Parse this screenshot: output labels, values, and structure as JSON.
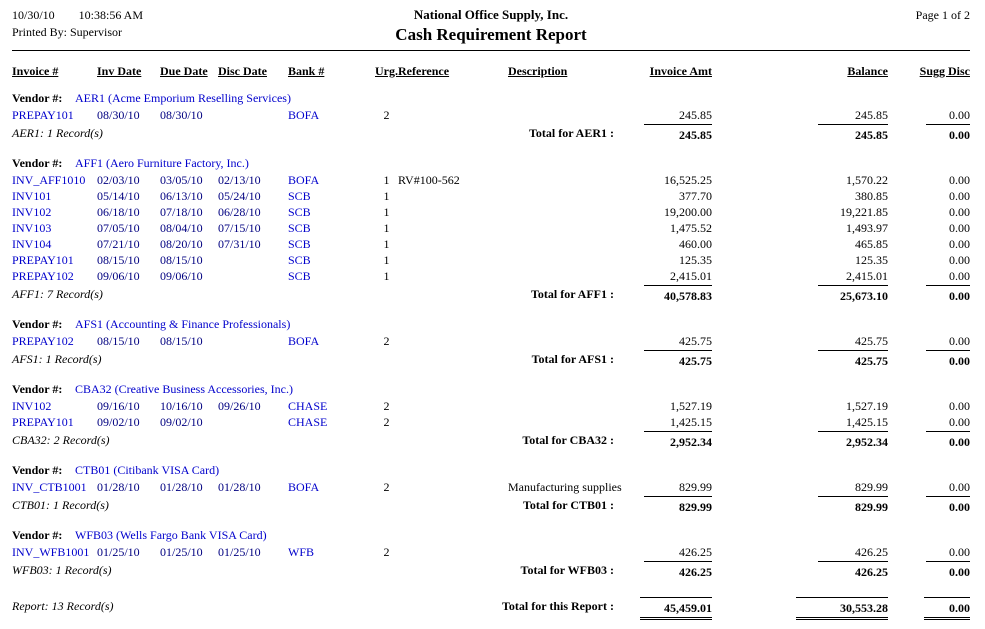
{
  "header": {
    "date": "10/30/10",
    "time": "10:38:56 AM",
    "printed_by": "Printed By: Supervisor",
    "company": "National Office Supply, Inc.",
    "title": "Cash Requirement Report",
    "page": "Page 1 of 2"
  },
  "columns": [
    "Invoice #",
    "Inv Date",
    "Due Date",
    "Disc Date",
    "Bank #",
    "Urg.",
    "Reference",
    "Description",
    "Invoice Amt",
    "Balance",
    "Sugg Disc"
  ],
  "vendor_label": "Vendor #:",
  "groups": [
    {
      "vendor": "AER1 (Acme Emporium Reselling Services)",
      "rows": [
        {
          "invoice": "PREPAY101",
          "inv_date": "08/30/10",
          "due_date": "08/30/10",
          "disc_date": "",
          "bank": "BOFA",
          "urg": "2",
          "reference": "",
          "description": "",
          "invoice_amt": "245.85",
          "balance": "245.85",
          "sugg_disc": "0.00"
        }
      ],
      "record_count": "AER1: 1 Record(s)",
      "total_label": "Total for AER1 :",
      "total_invoice_amt": "245.85",
      "total_balance": "245.85",
      "total_sugg_disc": "0.00"
    },
    {
      "vendor": "AFF1 (Aero Furniture Factory, Inc.)",
      "rows": [
        {
          "invoice": "INV_AFF1010",
          "inv_date": "02/03/10",
          "due_date": "03/05/10",
          "disc_date": "02/13/10",
          "bank": "BOFA",
          "urg": "1",
          "reference": "RV#100-562",
          "description": "",
          "invoice_amt": "16,525.25",
          "balance": "1,570.22",
          "sugg_disc": "0.00"
        },
        {
          "invoice": "INV101",
          "inv_date": "05/14/10",
          "due_date": "06/13/10",
          "disc_date": "05/24/10",
          "bank": "SCB",
          "urg": "1",
          "reference": "",
          "description": "",
          "invoice_amt": "377.70",
          "balance": "380.85",
          "sugg_disc": "0.00"
        },
        {
          "invoice": "INV102",
          "inv_date": "06/18/10",
          "due_date": "07/18/10",
          "disc_date": "06/28/10",
          "bank": "SCB",
          "urg": "1",
          "reference": "",
          "description": "",
          "invoice_amt": "19,200.00",
          "balance": "19,221.85",
          "sugg_disc": "0.00"
        },
        {
          "invoice": "INV103",
          "inv_date": "07/05/10",
          "due_date": "08/04/10",
          "disc_date": "07/15/10",
          "bank": "SCB",
          "urg": "1",
          "reference": "",
          "description": "",
          "invoice_amt": "1,475.52",
          "balance": "1,493.97",
          "sugg_disc": "0.00"
        },
        {
          "invoice": "INV104",
          "inv_date": "07/21/10",
          "due_date": "08/20/10",
          "disc_date": "07/31/10",
          "bank": "SCB",
          "urg": "1",
          "reference": "",
          "description": "",
          "invoice_amt": "460.00",
          "balance": "465.85",
          "sugg_disc": "0.00"
        },
        {
          "invoice": "PREPAY101",
          "inv_date": "08/15/10",
          "due_date": "08/15/10",
          "disc_date": "",
          "bank": "SCB",
          "urg": "1",
          "reference": "",
          "description": "",
          "invoice_amt": "125.35",
          "balance": "125.35",
          "sugg_disc": "0.00"
        },
        {
          "invoice": "PREPAY102",
          "inv_date": "09/06/10",
          "due_date": "09/06/10",
          "disc_date": "",
          "bank": "SCB",
          "urg": "1",
          "reference": "",
          "description": "",
          "invoice_amt": "2,415.01",
          "balance": "2,415.01",
          "sugg_disc": "0.00"
        }
      ],
      "record_count": "AFF1: 7 Record(s)",
      "total_label": "Total for AFF1 :",
      "total_invoice_amt": "40,578.83",
      "total_balance": "25,673.10",
      "total_sugg_disc": "0.00"
    },
    {
      "vendor": "AFS1 (Accounting & Finance Professionals)",
      "rows": [
        {
          "invoice": "PREPAY102",
          "inv_date": "08/15/10",
          "due_date": "08/15/10",
          "disc_date": "",
          "bank": "BOFA",
          "urg": "2",
          "reference": "",
          "description": "",
          "invoice_amt": "425.75",
          "balance": "425.75",
          "sugg_disc": "0.00"
        }
      ],
      "record_count": "AFS1: 1 Record(s)",
      "total_label": "Total for AFS1 :",
      "total_invoice_amt": "425.75",
      "total_balance": "425.75",
      "total_sugg_disc": "0.00"
    },
    {
      "vendor": "CBA32 (Creative Business Accessories, Inc.)",
      "rows": [
        {
          "invoice": "INV102",
          "inv_date": "09/16/10",
          "due_date": "10/16/10",
          "disc_date": "09/26/10",
          "bank": "CHASE",
          "urg": "2",
          "reference": "",
          "description": "",
          "invoice_amt": "1,527.19",
          "balance": "1,527.19",
          "sugg_disc": "0.00"
        },
        {
          "invoice": "PREPAY101",
          "inv_date": "09/02/10",
          "due_date": "09/02/10",
          "disc_date": "",
          "bank": "CHASE",
          "urg": "2",
          "reference": "",
          "description": "",
          "invoice_amt": "1,425.15",
          "balance": "1,425.15",
          "sugg_disc": "0.00"
        }
      ],
      "record_count": "CBA32: 2 Record(s)",
      "total_label": "Total for CBA32 :",
      "total_invoice_amt": "2,952.34",
      "total_balance": "2,952.34",
      "total_sugg_disc": "0.00"
    },
    {
      "vendor": "CTB01 (Citibank VISA Card)",
      "rows": [
        {
          "invoice": "INV_CTB1001",
          "inv_date": "01/28/10",
          "due_date": "01/28/10",
          "disc_date": "01/28/10",
          "bank": "BOFA",
          "urg": "2",
          "reference": "",
          "description": "Manufacturing supplies",
          "invoice_amt": "829.99",
          "balance": "829.99",
          "sugg_disc": "0.00"
        }
      ],
      "record_count": "CTB01: 1 Record(s)",
      "total_label": "Total for CTB01 :",
      "total_invoice_amt": "829.99",
      "total_balance": "829.99",
      "total_sugg_disc": "0.00"
    },
    {
      "vendor": "WFB03 (Wells Fargo Bank VISA Card)",
      "rows": [
        {
          "invoice": "INV_WFB1001",
          "inv_date": "01/25/10",
          "due_date": "01/25/10",
          "disc_date": "01/25/10",
          "bank": "WFB",
          "urg": "2",
          "reference": "",
          "description": "",
          "invoice_amt": "426.25",
          "balance": "426.25",
          "sugg_disc": "0.00"
        }
      ],
      "record_count": "WFB03: 1 Record(s)",
      "total_label": "Total for WFB03 :",
      "total_invoice_amt": "426.25",
      "total_balance": "426.25",
      "total_sugg_disc": "0.00"
    }
  ],
  "report_total": {
    "record_count": "Report: 13 Record(s)",
    "label": "Total for this Report :",
    "invoice_amt": "45,459.01",
    "balance": "30,553.28",
    "sugg_disc": "0.00"
  },
  "colors": {
    "link_blue": "#0000CC",
    "date_blue": "#000080"
  }
}
